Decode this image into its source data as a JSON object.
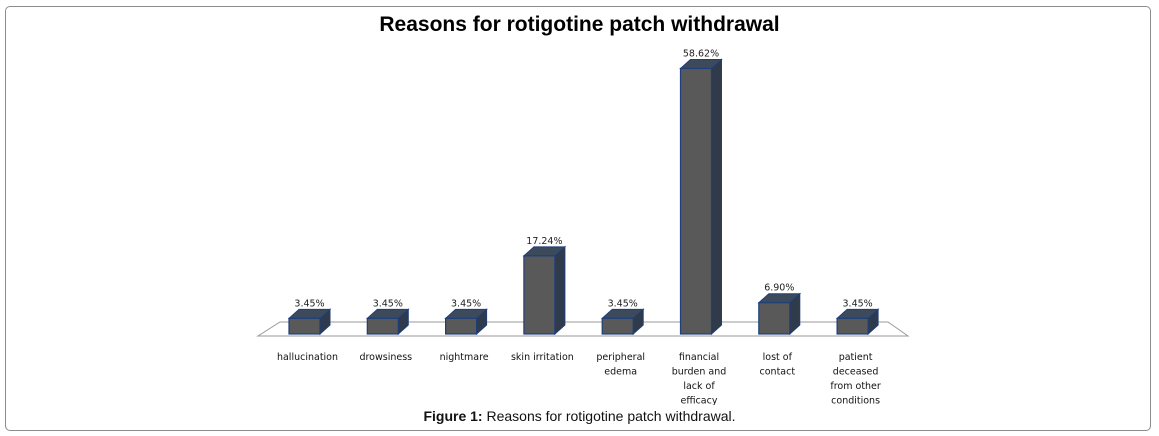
{
  "chart_data": {
    "type": "bar",
    "title": "Reasons for rotigotine patch withdrawal",
    "categories": [
      [
        "hallucination"
      ],
      [
        "drowsiness"
      ],
      [
        "nightmare"
      ],
      [
        "skin irritation"
      ],
      [
        "peripheral",
        "edema"
      ],
      [
        "financial",
        "burden and",
        "lack of",
        "efficacy"
      ],
      [
        "lost of",
        "contact"
      ],
      [
        "patient",
        "deceased",
        "from other",
        "conditions"
      ]
    ],
    "values": [
      3.45,
      3.45,
      3.45,
      17.24,
      3.45,
      58.62,
      6.9,
      3.45
    ],
    "value_labels": [
      "3.45%",
      "3.45%",
      "3.45%",
      "17.24%",
      "3.45%",
      "58.62%",
      "6.90%",
      "3.45%"
    ],
    "ylim": [
      0,
      60
    ],
    "style": "3d-column",
    "grid": false,
    "colors": {
      "bar_front": "#595959",
      "bar_side": "#2f3a4a",
      "bar_top": "#3c4a5c",
      "bar_edge": "#1f3f7a"
    }
  },
  "caption": {
    "label": "Figure 1:",
    "text": " Reasons for rotigotine patch withdrawal."
  }
}
